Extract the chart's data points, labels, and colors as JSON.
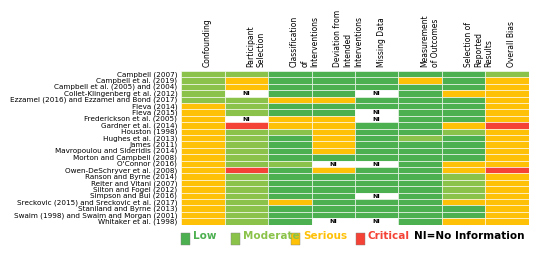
{
  "studies": [
    "Campbell (2007)",
    "Campbell et al. (2019)",
    "Campbell et al. (2005) and (2004)",
    "Collet-Klingenberg et al. (2012)",
    "Ezzamel (2016) and Ezzamel and Bond (2017)",
    "Fleva (2014)",
    "Fleva (2015)",
    "Frederickson et al. (2005)",
    "Gardner et al. (2014)",
    "Houston (1998)",
    "Hughes et al. (2013)",
    "James (2011)",
    "Mavropoulou and Sideridis (2014)",
    "Morton and Campbell (2008)",
    "O'Connor (2016)",
    "Owen-DeSchryver et al. (2008)",
    "Ranson and Byrne (2014)",
    "Reiter and Vitani (2007)",
    "Silton and Fogel (2012)",
    "Simpson and Bui (2016)",
    "Sreckovic (2015) and Sreckovic et al. (2017)",
    "Staniland and Byrne (2013)",
    "Swaim (1998) and Swaim and Morgan (2001)",
    "Whitaker et al. (1998)"
  ],
  "columns": [
    "Confounding",
    "Participant\nSelection",
    "Classification\nof\nInterventions",
    "Deviation from\nIntended\nInterventions",
    "Missing Data",
    "Measurement\nof Outcomes",
    "Selection of\nReported\nResults",
    "Overall Bias"
  ],
  "colors": {
    "L": "#4caf50",
    "M": "#8bc34a",
    "S": "#ffc107",
    "C": "#f44336",
    "NI": "#ffffff"
  },
  "grid": [
    [
      "M",
      "M",
      "L",
      "L",
      "L",
      "L",
      "L",
      "M"
    ],
    [
      "M",
      "S",
      "L",
      "L",
      "L",
      "S",
      "L",
      "S"
    ],
    [
      "M",
      "S",
      "L",
      "L",
      "L",
      "L",
      "L",
      "S"
    ],
    [
      "M",
      "NI",
      "L",
      "L",
      "NI",
      "L",
      "S",
      "S"
    ],
    [
      "M",
      "M",
      "S",
      "S",
      "L",
      "L",
      "L",
      "S"
    ],
    [
      "S",
      "M",
      "L",
      "L",
      "L",
      "L",
      "L",
      "S"
    ],
    [
      "S",
      "M",
      "L",
      "L",
      "NI",
      "L",
      "L",
      "S"
    ],
    [
      "S",
      "NI",
      "S",
      "S",
      "NI",
      "L",
      "L",
      "S"
    ],
    [
      "S",
      "C",
      "S",
      "S",
      "L",
      "L",
      "S",
      "C"
    ],
    [
      "S",
      "M",
      "M",
      "S",
      "L",
      "L",
      "M",
      "S"
    ],
    [
      "S",
      "M",
      "L",
      "S",
      "L",
      "M",
      "L",
      "S"
    ],
    [
      "S",
      "M",
      "L",
      "S",
      "L",
      "L",
      "L",
      "S"
    ],
    [
      "S",
      "M",
      "L",
      "S",
      "L",
      "L",
      "L",
      "S"
    ],
    [
      "S",
      "M",
      "L",
      "L",
      "L",
      "L",
      "L",
      "S"
    ],
    [
      "S",
      "M",
      "M",
      "NI",
      "NI",
      "L",
      "S",
      "S"
    ],
    [
      "S",
      "C",
      "L",
      "S",
      "L",
      "L",
      "S",
      "C"
    ],
    [
      "S",
      "M",
      "L",
      "L",
      "L",
      "L",
      "M",
      "S"
    ],
    [
      "S",
      "M",
      "L",
      "L",
      "L",
      "L",
      "M",
      "S"
    ],
    [
      "S",
      "M",
      "L",
      "L",
      "L",
      "L",
      "M",
      "S"
    ],
    [
      "S",
      "M",
      "L",
      "L",
      "NI",
      "L",
      "M",
      "S"
    ],
    [
      "S",
      "M",
      "S",
      "L",
      "L",
      "L",
      "S",
      "S"
    ],
    [
      "S",
      "M",
      "L",
      "L",
      "L",
      "L",
      "L",
      "S"
    ],
    [
      "S",
      "M",
      "L",
      "L",
      "L",
      "L",
      "L",
      "S"
    ],
    [
      "S",
      "M",
      "L",
      "NI",
      "NI",
      "L",
      "S",
      "S"
    ]
  ],
  "legend_colors": [
    "#4caf50",
    "#8bc34a",
    "#ffc107",
    "#f44336"
  ],
  "legend_labels": [
    "Low",
    "Moderate",
    "Serious",
    "Critical"
  ],
  "ni_label": "NI=No Information",
  "bg_color": "#ffffff",
  "header_fontsize": 5.5,
  "row_fontsize": 5.2,
  "cell_fontsize": 4.5,
  "legend_fontsize": 7.5
}
